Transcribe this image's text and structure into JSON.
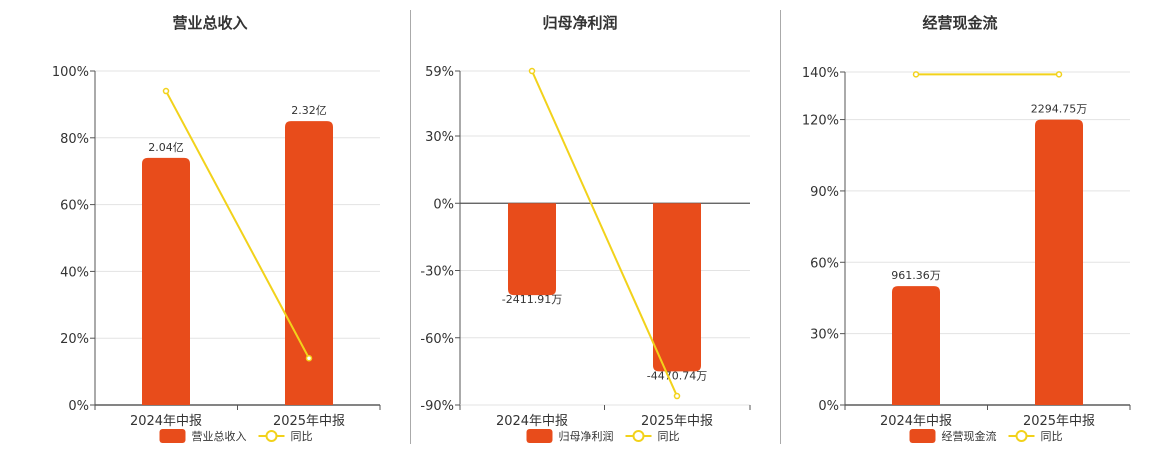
{
  "chart_data": [
    {
      "type": "bar",
      "title": "营业总收入",
      "categories": [
        "2024年中报",
        "2025年中报"
      ],
      "series": [
        {
          "name": "营业总收入",
          "type": "bar",
          "values": [
            74,
            85
          ],
          "labels": [
            "2.04亿",
            "2.32亿"
          ]
        },
        {
          "name": "同比",
          "type": "line",
          "values": [
            94,
            14
          ]
        }
      ],
      "ylim": [
        0,
        100
      ],
      "ticks": [
        0,
        20,
        40,
        60,
        80,
        100
      ],
      "tick_labels": [
        "0%",
        "20%",
        "40%",
        "60%",
        "80%",
        "100%"
      ],
      "grid": true,
      "legend": "bottom",
      "colors": {
        "bar": "#e84c1b",
        "line": "#f2d21b"
      }
    },
    {
      "type": "bar",
      "title": "归母净利润",
      "categories": [
        "2024年中报",
        "2025年中报"
      ],
      "series": [
        {
          "name": "归母净利润",
          "type": "bar",
          "values": [
            -41,
            -75
          ],
          "labels": [
            "-2411.91万",
            "-4470.74万"
          ]
        },
        {
          "name": "同比",
          "type": "line",
          "values": [
            59,
            -86
          ]
        }
      ],
      "ylim": [
        -90,
        59
      ],
      "ticks": [
        -90,
        -60,
        -30,
        0,
        30,
        59
      ],
      "tick_labels": [
        "-90%",
        "-60%",
        "-30%",
        "0%",
        "30%",
        "59%"
      ],
      "grid": true,
      "legend": "bottom",
      "colors": {
        "bar": "#e84c1b",
        "line": "#f2d21b"
      }
    },
    {
      "type": "bar",
      "title": "经营现金流",
      "categories": [
        "2024年中报",
        "2025年中报"
      ],
      "series": [
        {
          "name": "经营现金流",
          "type": "bar",
          "values": [
            50,
            120
          ],
          "labels": [
            "961.36万",
            "2294.75万"
          ]
        },
        {
          "name": "同比",
          "type": "line",
          "values": [
            139,
            139
          ]
        }
      ],
      "ylim": [
        0,
        140
      ],
      "ticks": [
        0,
        30,
        60,
        90,
        120,
        140
      ],
      "tick_labels": [
        "0%",
        "30%",
        "60%",
        "90%",
        "120%",
        "140%"
      ],
      "grid": true,
      "legend": "bottom",
      "colors": {
        "bar": "#e84c1b",
        "line": "#f2d21b"
      }
    }
  ]
}
